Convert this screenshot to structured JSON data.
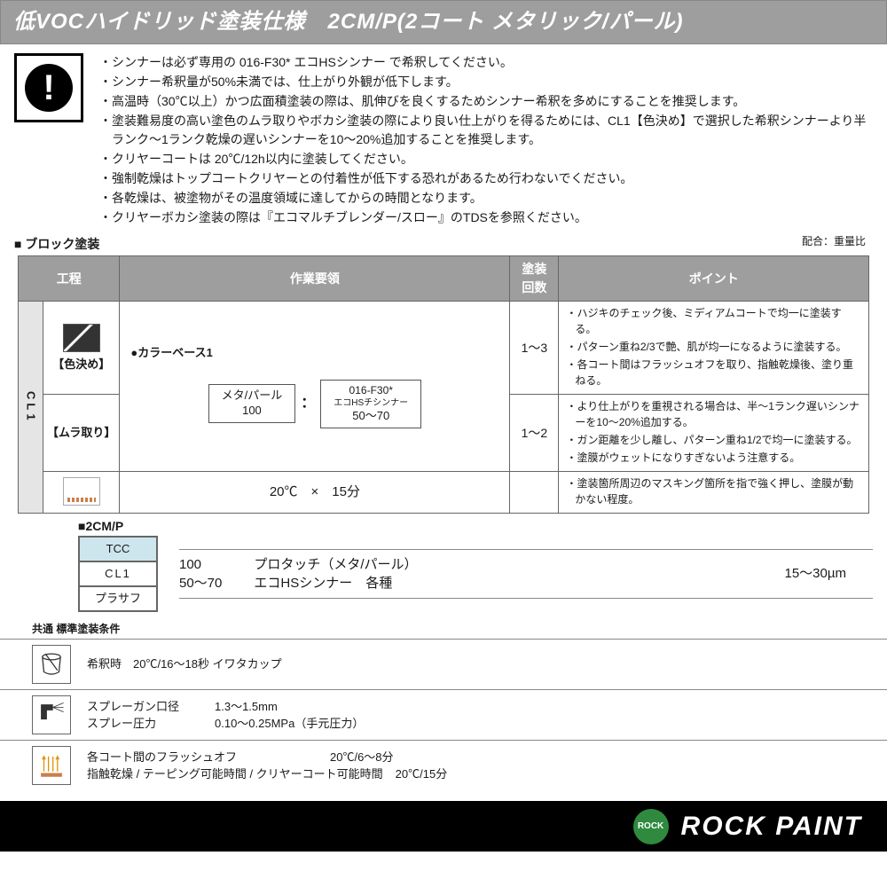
{
  "title": "低VOCハイドリッド塗装仕様　2CM/P(2コート メタリック/パール)",
  "notes": [
    "・シンナーは必ず専用の 016-F30* エコHSシンナー で希釈してください。",
    "・シンナー希釈量が50%未満では、仕上がり外観が低下します。",
    "・高温時（30℃以上）かつ広面積塗装の際は、肌伸びを良くするためシンナー希釈を多めにすることを推奨します。",
    "・塗装難易度の高い塗色のムラ取りやボカシ塗装の際により良い仕上がりを得るためには、CL1【色決め】で選択した希釈シンナーより半ランク～1ランク乾燥の遅いシンナーを10～20%追加することを推奨します。",
    "・クリヤーコートは 20℃/12h以内に塗装してください。",
    "・強制乾燥はトップコートクリヤーとの付着性が低下する恐れがあるため行わないでください。",
    "・各乾燥は、被塗物がその温度領域に達してからの時間となります。",
    "・クリヤーボカシ塗装の際は『エコマルチブレンダー/スロー』のTDSを参照ください。"
  ],
  "block_label": "■ ブロック塗装",
  "ratio_note": "配合：重量比",
  "headers": {
    "process": "工程",
    "work": "作業要領",
    "coats": "塗装\n回数",
    "points": "ポイント"
  },
  "cl1_label": "CL1",
  "row1": {
    "proc_label": "【色決め】",
    "work_title": "●カラーベース1",
    "mix_a_line1": "メタ/パール",
    "mix_a_line2": "100",
    "mix_colon": "：",
    "mix_b_line1": "016-F30*",
    "mix_b_line2": "エコHSチシンナー",
    "mix_b_line3": "50～70",
    "coats": "1～3",
    "points": [
      "ハジキのチェック後、ミディアムコートで均一に塗装する。",
      "パターン重ね2/3で艶、肌が均一になるように塗装する。",
      "各コート間はフラッシュオフを取り、指触乾燥後、塗り重ねる。"
    ]
  },
  "row2": {
    "proc_label": "【ムラ取り】",
    "coats": "1～2",
    "points": [
      "より仕上がりを重視される場合は、半～1ランク遅いシンナーを10～20%追加する。",
      "ガン距離を少し離し、パターン重ね1/2で均一に塗装する。",
      "塗膜がウェットになりすぎないよう注意する。"
    ]
  },
  "row3": {
    "work": "20℃　×　15分",
    "points": [
      "塗装箇所周辺のマスキング箇所を指で強く押し、塗膜が動かない程度。"
    ]
  },
  "sub_label": "■2CM/P",
  "layers": {
    "tcc": "TCC",
    "cl1": "CL1",
    "prs": "プラサフ"
  },
  "mix2": {
    "a_line1": "100",
    "a_line2": "50～70",
    "b_line1": "プロタッチ（メタ/パール）",
    "b_line2": "エコHSシンナー　各種",
    "thickness": "15～30µm"
  },
  "cond_label": "共通 標準塗装条件",
  "cond1": {
    "text": "希釈時　20℃/16～18秒 イワタカップ"
  },
  "cond2": {
    "l1a": "スプレーガン口径",
    "l1b": "1.3～1.5mm",
    "l2a": "スプレー圧力",
    "l2b": "0.10～0.25MPa（手元圧力）"
  },
  "cond3": {
    "l1a": "各コート間のフラッシュオフ",
    "l1b": "20℃/6～8分",
    "l2a": "指触乾燥 / テーピング可能時間 / クリヤーコート可能時間",
    "l2b": "20℃/15分"
  },
  "footer": {
    "brand": "ROCK PAINT",
    "badge": "ROCK"
  }
}
